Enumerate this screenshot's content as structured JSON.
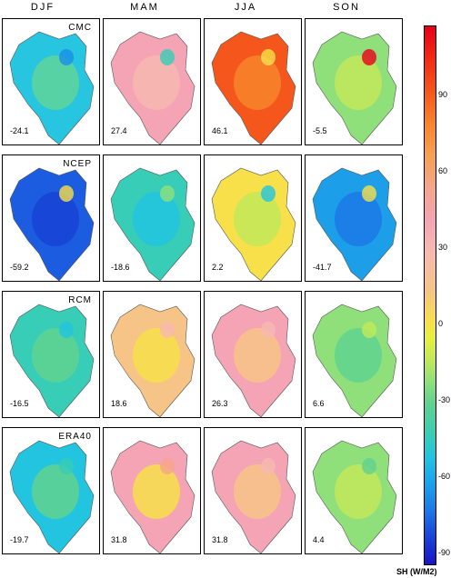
{
  "columns": [
    "DJF",
    "MAM",
    "JJA",
    "SON"
  ],
  "rows": [
    {
      "model": "CMC",
      "values": [
        "-24.1",
        "27.4",
        "46.1",
        "-5.5"
      ]
    },
    {
      "model": "NCEP",
      "values": [
        "-59.2",
        "-18.6",
        "2.2",
        "-41.7"
      ]
    },
    {
      "model": "RCM",
      "values": [
        "-16.5",
        "18.6",
        "26.3",
        "6.6"
      ]
    },
    {
      "model": "ERA40",
      "values": [
        "-19.7",
        "31.8",
        "31.8",
        "4.4"
      ]
    }
  ],
  "colorbar": {
    "labels": [
      "90",
      "60",
      "30",
      "0",
      "-30",
      "-60",
      "-90"
    ],
    "units": "SH (W/M2)"
  },
  "colors": {
    "bg": "#ffffff",
    "border": "#000000",
    "palette": [
      "#1a14c4",
      "#1c78e6",
      "#22c4e0",
      "#60d28f",
      "#c2e85a",
      "#f7e04a",
      "#f6c486",
      "#f4a4b4",
      "#f6a58c",
      "#f5561b",
      "#e8001a"
    ]
  }
}
